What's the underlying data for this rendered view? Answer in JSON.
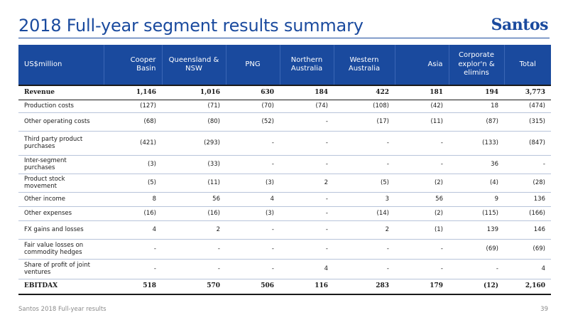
{
  "header": {
    "title": "2018 Full-year segment results summary",
    "logo_text": "Santos"
  },
  "table": {
    "columns": [
      "US$million",
      "Cooper Basin",
      "Queensland & NSW",
      "PNG",
      "Northern Australia",
      "Western Australia",
      "Asia",
      "Corporate explor'n & elimins",
      "Total"
    ],
    "rows": [
      {
        "label": "Revenue",
        "values": [
          "1,146",
          "1,016",
          "630",
          "184",
          "422",
          "181",
          "194",
          "3,773"
        ]
      },
      {
        "label": "Production costs",
        "values": [
          "(127)",
          "(71)",
          "(70)",
          "(74)",
          "(108)",
          "(42)",
          "18",
          "(474)"
        ]
      },
      {
        "label": "Other operating costs",
        "values": [
          "(68)",
          "(80)",
          "(52)",
          "-",
          "(17)",
          "(11)",
          "(87)",
          "(315)"
        ]
      },
      {
        "label": "Third party product purchases",
        "values": [
          "(421)",
          "(293)",
          "-",
          "-",
          "-",
          "-",
          "(133)",
          "(847)"
        ]
      },
      {
        "label": "Inter-segment purchases",
        "values": [
          "(3)",
          "(33)",
          "-",
          "-",
          "-",
          "-",
          "36",
          "-"
        ]
      },
      {
        "label": "Product stock movement",
        "values": [
          "(5)",
          "(11)",
          "(3)",
          "2",
          "(5)",
          "(2)",
          "(4)",
          "(28)"
        ]
      },
      {
        "label": "Other income",
        "values": [
          "8",
          "56",
          "4",
          "-",
          "3",
          "56",
          "9",
          "136"
        ]
      },
      {
        "label": "Other expenses",
        "values": [
          "(16)",
          "(16)",
          "(3)",
          "-",
          "(14)",
          "(2)",
          "(115)",
          "(166)"
        ]
      },
      {
        "label": "FX gains and losses",
        "values": [
          "4",
          "2",
          "-",
          "-",
          "2",
          "(1)",
          "139",
          "146"
        ]
      },
      {
        "label": "Fair value losses on commodity hedges",
        "values": [
          "-",
          "-",
          "-",
          "-",
          "-",
          "-",
          "(69)",
          "(69)"
        ]
      },
      {
        "label": "Share of profit of joint ventures",
        "values": [
          "-",
          "-",
          "-",
          "4",
          "-",
          "-",
          "-",
          "4"
        ]
      },
      {
        "label": "EBITDAX",
        "values": [
          "518",
          "570",
          "506",
          "116",
          "283",
          "179",
          "(12)",
          "2,160"
        ]
      }
    ]
  },
  "footer": {
    "left": "Santos 2018 Full-year results",
    "page_number": "39"
  }
}
